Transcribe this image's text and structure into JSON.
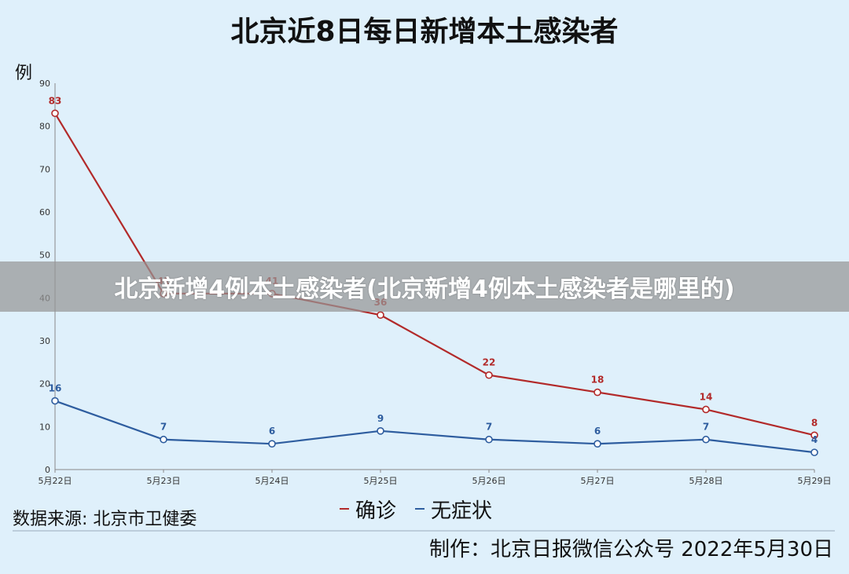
{
  "chart_data": {
    "type": "line",
    "title": "北京近8日每日新增本土感染者",
    "ylabel": "例",
    "ylim": [
      0,
      90
    ],
    "yticks": [
      0,
      10,
      20,
      30,
      40,
      50,
      60,
      70,
      80,
      90
    ],
    "categories": [
      "5月22日",
      "5月23日",
      "5月24日",
      "5月25日",
      "5月26日",
      "5月27日",
      "5月28日",
      "5月29日"
    ],
    "series": [
      {
        "name": "确诊",
        "color": "#b22a2a",
        "values": [
          83,
          41,
          41,
          36,
          22,
          18,
          14,
          8
        ]
      },
      {
        "name": "无症状",
        "color": "#2e5d9f",
        "values": [
          16,
          7,
          6,
          9,
          7,
          6,
          7,
          4
        ]
      }
    ],
    "legend_position": "bottom-center",
    "grid": false
  },
  "footer": {
    "source": "数据来源: 北京市卫健委",
    "credit": "制作：北京日报微信公众号 2022年5月30日"
  },
  "banner": {
    "text": "北京新增4例本土感染者(北京新增4例本土感染者是哪里的)"
  },
  "colors": {
    "background": "#dff0fb",
    "confirmed": "#b22a2a",
    "asymptomatic": "#2e5d9f"
  }
}
